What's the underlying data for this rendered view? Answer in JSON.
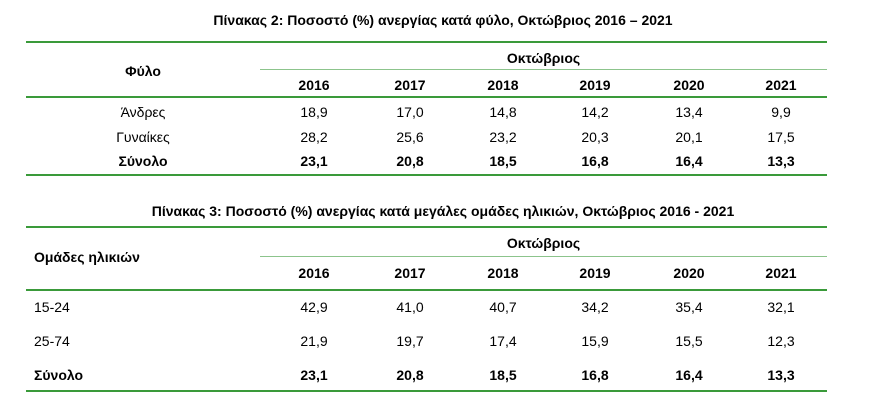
{
  "table2": {
    "title": "Πίνακας 2: Ποσοστό (%) ανεργίας κατά φύλο, Οκτώβριος 2016 – 2021",
    "row_header": "Φύλο",
    "group_header": "Οκτώβριος",
    "years": [
      "2016",
      "2017",
      "2018",
      "2019",
      "2020",
      "2021"
    ],
    "rows": [
      {
        "label": "Άνδρες",
        "values": [
          "18,9",
          "17,0",
          "14,8",
          "14,2",
          "13,4",
          "9,9"
        ]
      },
      {
        "label": "Γυναίκες",
        "values": [
          "28,2",
          "25,6",
          "23,2",
          "20,3",
          "20,1",
          "17,5"
        ]
      },
      {
        "label": "Σύνολο",
        "values": [
          "23,1",
          "20,8",
          "18,5",
          "16,8",
          "16,4",
          "13,3"
        ]
      }
    ]
  },
  "table3": {
    "title": "Πίνακας 3: Ποσοστό (%) ανεργίας κατά μεγάλες ομάδες ηλικιών, Οκτώβριος 2016 - 2021",
    "row_header": "Ομάδες ηλικιών",
    "group_header": "Οκτώβριος",
    "years": [
      "2016",
      "2017",
      "2018",
      "2019",
      "2020",
      "2021"
    ],
    "rows": [
      {
        "label": "15-24",
        "values": [
          "42,9",
          "41,0",
          "40,7",
          "34,2",
          "35,4",
          "32,1"
        ]
      },
      {
        "label": "25-74",
        "values": [
          "21,9",
          "19,7",
          "17,4",
          "15,9",
          "15,5",
          "12,3"
        ]
      },
      {
        "label": "Σύνολο",
        "values": [
          "23,1",
          "20,8",
          "18,5",
          "16,8",
          "16,4",
          "13,3"
        ]
      }
    ]
  },
  "colors": {
    "rule": "#3a9a3a",
    "thin_rule": "#8cc48c"
  }
}
